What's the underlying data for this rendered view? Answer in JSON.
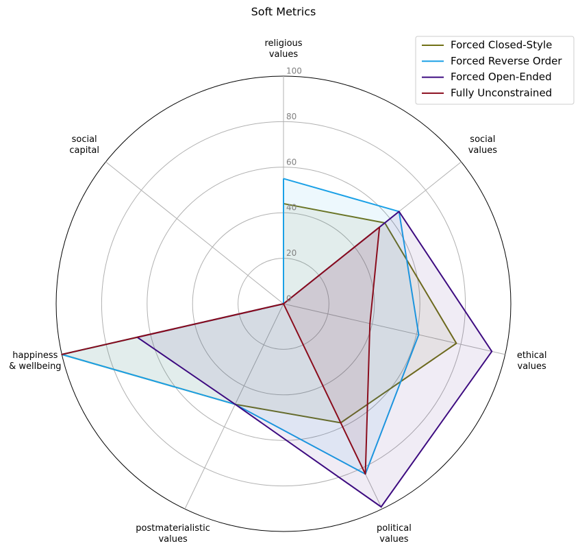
{
  "chart_data": {
    "type": "radar",
    "title": "Soft Metrics",
    "categories": [
      "religious\nvalues",
      "social\nvalues",
      "ethical\nvalues",
      "political\nvalues",
      "postmaterialistic\nvalues",
      "happiness\n& wellbeing",
      "social\ncapital"
    ],
    "rlim": [
      0,
      100
    ],
    "rticks": [
      0,
      20,
      40,
      60,
      80,
      100
    ],
    "grid": true,
    "legend": "upper right",
    "series": [
      {
        "name": "Forced Closed-Style",
        "color": "#707015",
        "values": [
          44,
          57,
          78,
          58,
          49,
          100,
          0
        ]
      },
      {
        "name": "Forced Reverse Order",
        "color": "#1aa0e6",
        "values": [
          55,
          65,
          61,
          83,
          49,
          100,
          0
        ]
      },
      {
        "name": "Forced Open-Ended",
        "color": "#3d0b80",
        "values": [
          0,
          65,
          94,
          99,
          49,
          66,
          0
        ]
      },
      {
        "name": "Fully Unconstrained",
        "color": "#8a0c1c",
        "values": [
          0,
          54,
          39,
          83,
          0,
          100,
          0
        ]
      }
    ]
  }
}
